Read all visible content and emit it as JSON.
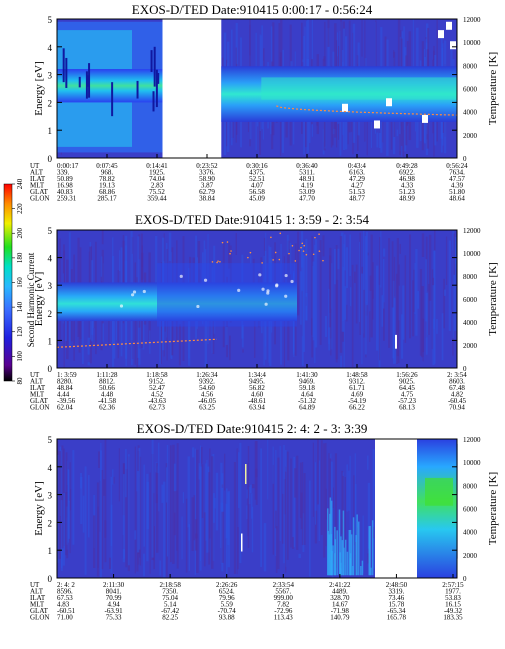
{
  "chart_data": [
    {
      "type": "heatmap",
      "title": "EXOS-D/TED   Date:910415   0:00:17 - 0:56:24",
      "ylabel": "Energy [eV]",
      "y2label": "Temperature [K]",
      "ylim": [
        0,
        5
      ],
      "y2lim": [
        0,
        12000
      ],
      "y_ticks": [
        "0",
        "1",
        "2",
        "3",
        "4",
        "5"
      ],
      "y2_ticks": [
        "0",
        "2000",
        "4000",
        "6000",
        "8000",
        "10000",
        "12000"
      ],
      "row_labels": [
        "UT",
        "ALT",
        "ILAT",
        "MLT",
        "GLAT",
        "GLON"
      ],
      "columns": [
        [
          "0:00:17",
          "339.",
          "50.89",
          "16.98",
          "40.83",
          "259.31"
        ],
        [
          "0:07:45",
          "968.",
          "78.82",
          "19.13",
          "68.86",
          "285.17"
        ],
        [
          "0:14:41",
          "1925.",
          "74.04",
          "2.83",
          "75.52",
          "359.44"
        ],
        [
          "0:23:52",
          "3376.",
          "58.90",
          "3.87",
          "62.79",
          "38.84"
        ],
        [
          "0:30:16",
          "4375.",
          "52.51",
          "4.07",
          "56.58",
          "45.09"
        ],
        [
          "0:36:40",
          "5311.",
          "48.91",
          "4.19",
          "53.09",
          "47.70"
        ],
        [
          "0:43:4",
          "6163.",
          "47.29",
          "4.27",
          "51.53",
          "48.77"
        ],
        [
          "0:49:28",
          "6922.",
          "46.98",
          "4.33",
          "51.23",
          "48.99"
        ],
        [
          "0:56:24",
          "7634.",
          "47.57",
          "4.39",
          "51.80",
          "48.64"
        ]
      ],
      "temperature_trace": "decreasing from about 4500 K to 3700 K in the right segment",
      "data_gap": "approx. 0:15 to 0:23"
    },
    {
      "type": "heatmap",
      "title": "EXOS-D/TED   Date:910415   1: 3:59 - 2: 3:54",
      "ylabel": "Energy [eV]",
      "y2label": "Temperature [K]",
      "ylim": [
        0,
        5
      ],
      "y2lim": [
        0,
        12000
      ],
      "y_ticks": [
        "0",
        "1",
        "2",
        "3",
        "4",
        "5"
      ],
      "y2_ticks": [
        "0",
        "2000",
        "4000",
        "6000",
        "8000",
        "10000",
        "12000"
      ],
      "row_labels": [
        "UT",
        "ALT",
        "ILAT",
        "MLT",
        "GLAT",
        "GLON"
      ],
      "columns": [
        [
          "1: 3:59",
          "8280.",
          "48.84",
          "4.44",
          "-39.56",
          "62.04"
        ],
        [
          "1:11:28",
          "8812.",
          "50.66",
          "4.48",
          "-41.58",
          "62.36"
        ],
        [
          "1:18:58",
          "9152.",
          "52.47",
          "4.52",
          "-43.63",
          "62.73"
        ],
        [
          "1:26:34",
          "9392.",
          "54.60",
          "4.56",
          "-46.05",
          "63.25"
        ],
        [
          "1:34:4",
          "9495.",
          "56.82",
          "4.60",
          "-48.61",
          "63.94"
        ],
        [
          "1:41:30",
          "9469.",
          "59.18",
          "4.64",
          "-51.32",
          "64.89"
        ],
        [
          "1:48:58",
          "9312.",
          "61.71",
          "4.69",
          "-54.19",
          "66.22"
        ],
        [
          "1:56:26",
          "9025.",
          "64.45",
          "4.75",
          "-57.23",
          "68.13"
        ],
        [
          "2: 3:54",
          "8603.",
          "67.48",
          "4.82",
          "-60.45",
          "70.94"
        ]
      ],
      "temperature_trace": "rising from about 1800 K to 2500 K in the early part"
    },
    {
      "type": "heatmap",
      "title": "EXOS-D/TED   Date:910415   2: 4: 2 - 3: 3:39",
      "ylabel": "Energy [eV]",
      "y2label": "Temperature [K]",
      "ylim": [
        0,
        5
      ],
      "y2lim": [
        0,
        12000
      ],
      "y_ticks": [
        "0",
        "1",
        "2",
        "3",
        "4",
        "5"
      ],
      "y2_ticks": [
        "0",
        "2000",
        "4000",
        "6000",
        "8000",
        "10000",
        "12000"
      ],
      "row_labels": [
        "UT",
        "ALT",
        "ILAT",
        "MLT",
        "GLAT",
        "GLON"
      ],
      "columns": [
        [
          "2: 4: 2",
          "8596.",
          "67.53",
          "4.83",
          "-60.51",
          "71.00"
        ],
        [
          "2:11:30",
          "8041.",
          "70.99",
          "4.94",
          "-63.91",
          "75.33"
        ],
        [
          "2:18:58",
          "7350.",
          "75.04",
          "5.14",
          "-67.42",
          "82.25"
        ],
        [
          "2:26:26",
          "6524.",
          "79.96",
          "5.59",
          "-70.74",
          "93.88"
        ],
        [
          "2:33:54",
          "5567.",
          "999.00",
          "7.82",
          "-72.96",
          "113.43"
        ],
        [
          "2:41:22",
          "4489.",
          "328.70",
          "14.67",
          "-71.98",
          "140.79"
        ],
        [
          "2:48:50",
          "3319.",
          "73.46",
          "15.78",
          "-65.34",
          "165.78"
        ],
        [
          "2:57:15",
          "1977.",
          "53.83",
          "16.15",
          "-49.32",
          "183.35"
        ]
      ],
      "data_gap": "approx. 2:51 to 2:55"
    }
  ],
  "colorbar": {
    "label": "Second Harmonic Current",
    "range": [
      80,
      240
    ],
    "ticks": [
      "80",
      "100",
      "120",
      "140",
      "160",
      "180",
      "200",
      "220",
      "240"
    ]
  }
}
